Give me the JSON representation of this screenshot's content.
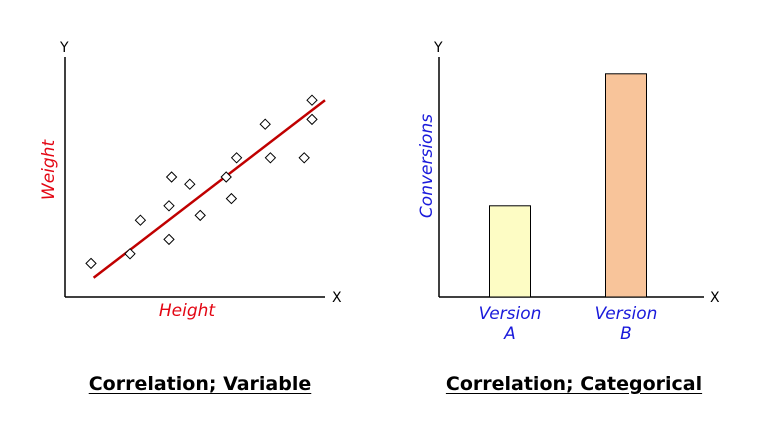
{
  "left_panel": {
    "y_letter": "Y",
    "x_letter": "X",
    "y_title": "Weight",
    "x_title": "Height",
    "caption": "Correlation; Variable",
    "title_color": "#e30613",
    "trend_color": "#c00000",
    "marker": "diamond-marker"
  },
  "right_panel": {
    "y_letter": "Y",
    "x_letter": "X",
    "y_title": "Conversions",
    "caption": "Correlation; Categorical",
    "title_color": "#1a1adb"
  },
  "chart_data": [
    {
      "type": "scatter",
      "xlabel": "Height",
      "ylabel": "Weight",
      "xlim": [
        0,
        100
      ],
      "ylim": [
        0,
        100
      ],
      "points": [
        {
          "x": 10,
          "y": 14
        },
        {
          "x": 25,
          "y": 18
        },
        {
          "x": 29,
          "y": 32
        },
        {
          "x": 40,
          "y": 24
        },
        {
          "x": 40,
          "y": 38
        },
        {
          "x": 41,
          "y": 50
        },
        {
          "x": 48,
          "y": 47
        },
        {
          "x": 52,
          "y": 34
        },
        {
          "x": 62,
          "y": 50
        },
        {
          "x": 64,
          "y": 41
        },
        {
          "x": 66,
          "y": 58
        },
        {
          "x": 77,
          "y": 72
        },
        {
          "x": 79,
          "y": 58
        },
        {
          "x": 92,
          "y": 58
        },
        {
          "x": 95,
          "y": 74
        },
        {
          "x": 95,
          "y": 82
        }
      ],
      "trendline": {
        "x": [
          11,
          100
        ],
        "y": [
          8,
          82
        ]
      }
    },
    {
      "type": "bar",
      "ylabel": "Conversions",
      "ylim": [
        0,
        100
      ],
      "categories": [
        [
          "Version",
          "A"
        ],
        [
          "Version",
          "B"
        ]
      ],
      "values": [
        38,
        93
      ],
      "colors": [
        "#fdfcc4",
        "#f8c49a"
      ]
    }
  ]
}
